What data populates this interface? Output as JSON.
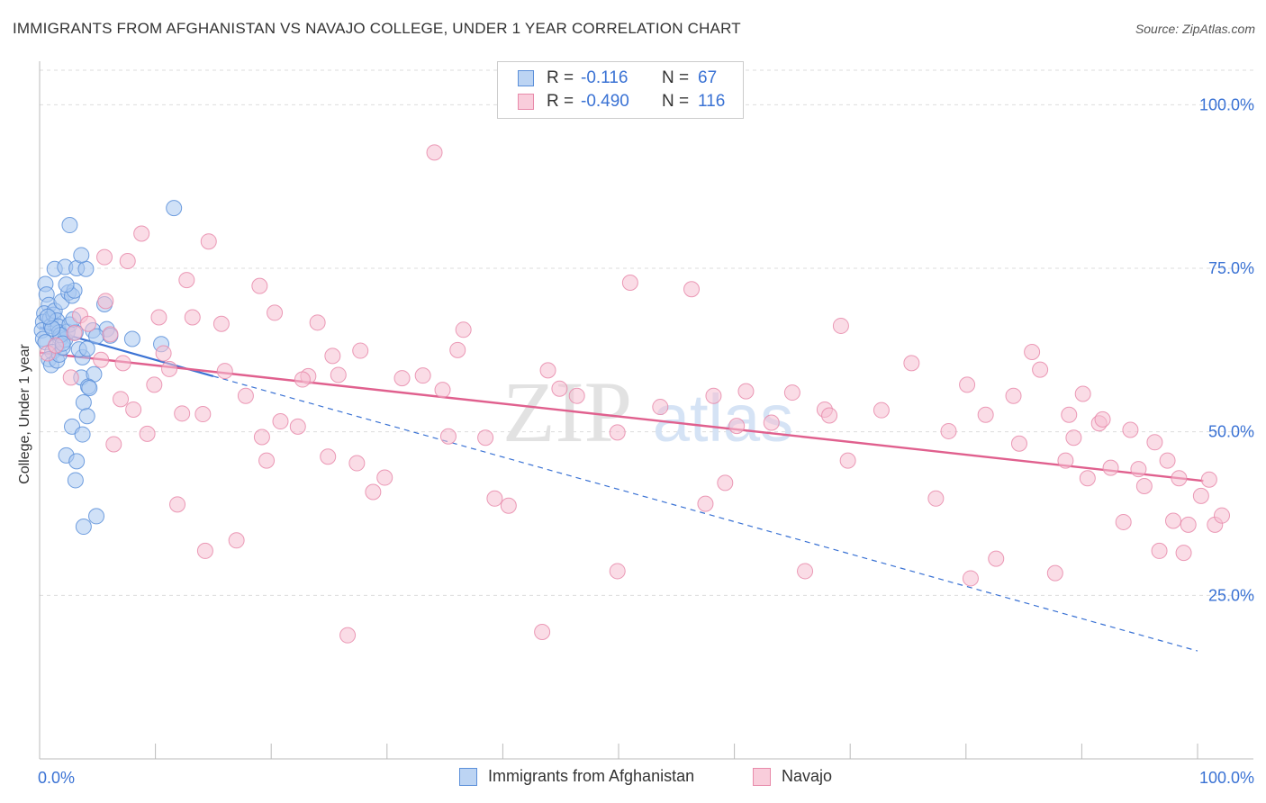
{
  "header": {
    "title": "IMMIGRANTS FROM AFGHANISTAN VS NAVAJO COLLEGE, UNDER 1 YEAR CORRELATION CHART",
    "source": "Source: ZipAtlas.com"
  },
  "watermark": {
    "zip": "ZIP",
    "atlas": "atlas"
  },
  "stats_legend": {
    "rows": [
      {
        "r_label": "R =",
        "r_value": "-0.116",
        "n_label": "N =",
        "n_value": "67"
      },
      {
        "r_label": "R =",
        "r_value": "-0.490",
        "n_label": "N =",
        "n_value": "116"
      }
    ]
  },
  "colors": {
    "blue_fill": "#a9c8f0",
    "blue_stroke": "#5b8fd9",
    "blue_line": "#3a72d4",
    "pink_fill": "#f6c0d1",
    "pink_stroke": "#e88aaa",
    "pink_line": "#e0608e",
    "tick_text": "#3a72d4",
    "grid": "#dddddd"
  },
  "chart_data": {
    "type": "scatter",
    "title": "IMMIGRANTS FROM AFGHANISTAN VS NAVAJO COLLEGE, UNDER 1 YEAR CORRELATION CHART",
    "xlabel": "",
    "ylabel": "College, Under 1 year",
    "xlim": [
      0,
      100
    ],
    "ylim": [
      0,
      105
    ],
    "x_tick_labels": [
      "0.0%",
      "100.0%"
    ],
    "y_ticks": [
      25,
      50,
      75,
      100
    ],
    "y_tick_labels": [
      "25.0%",
      "50.0%",
      "75.0%",
      "100.0%"
    ],
    "legend": [
      "Immigrants from Afghanistan",
      "Navajo"
    ],
    "series": [
      {
        "name": "Immigrants from Afghanistan",
        "color": "#a9c8f0",
        "points": [
          [
            0.5,
            72.6
          ],
          [
            0.6,
            71.0
          ],
          [
            0.8,
            69.4
          ],
          [
            0.4,
            68.1
          ],
          [
            0.3,
            66.8
          ],
          [
            0.2,
            65.5
          ],
          [
            0.3,
            64.2
          ],
          [
            0.5,
            63.7
          ],
          [
            0.9,
            67.3
          ],
          [
            1.0,
            66.2
          ],
          [
            1.2,
            67.9
          ],
          [
            1.3,
            68.5
          ],
          [
            1.5,
            67.0
          ],
          [
            1.6,
            66.1
          ],
          [
            1.7,
            65.2
          ],
          [
            1.8,
            64.3
          ],
          [
            1.4,
            63.0
          ],
          [
            1.1,
            62.2
          ],
          [
            0.8,
            61.1
          ],
          [
            1.0,
            60.2
          ],
          [
            1.5,
            60.9
          ],
          [
            1.7,
            61.8
          ],
          [
            2.0,
            62.9
          ],
          [
            2.2,
            64.1
          ],
          [
            2.4,
            65.3
          ],
          [
            2.6,
            66.4
          ],
          [
            1.9,
            69.9
          ],
          [
            2.5,
            71.3
          ],
          [
            2.8,
            70.8
          ],
          [
            3.0,
            71.6
          ],
          [
            2.3,
            72.5
          ],
          [
            1.3,
            74.9
          ],
          [
            2.2,
            75.2
          ],
          [
            3.2,
            75.0
          ],
          [
            4.0,
            74.9
          ],
          [
            3.6,
            77.0
          ],
          [
            2.6,
            81.6
          ],
          [
            11.6,
            84.2
          ],
          [
            5.6,
            69.5
          ],
          [
            3.1,
            65.2
          ],
          [
            4.6,
            65.5
          ],
          [
            5.8,
            65.7
          ],
          [
            6.1,
            64.7
          ],
          [
            4.9,
            64.6
          ],
          [
            3.7,
            61.4
          ],
          [
            3.4,
            62.6
          ],
          [
            4.1,
            62.7
          ],
          [
            8.0,
            64.2
          ],
          [
            10.5,
            63.4
          ],
          [
            3.6,
            58.3
          ],
          [
            4.7,
            58.8
          ],
          [
            4.2,
            56.9
          ],
          [
            4.3,
            56.7
          ],
          [
            3.8,
            54.5
          ],
          [
            4.1,
            52.4
          ],
          [
            2.8,
            50.8
          ],
          [
            3.7,
            49.6
          ],
          [
            2.3,
            46.4
          ],
          [
            3.2,
            45.5
          ],
          [
            3.1,
            42.6
          ],
          [
            3.8,
            35.5
          ],
          [
            4.9,
            37.1
          ],
          [
            1.8,
            64.8
          ],
          [
            2.0,
            63.5
          ],
          [
            1.1,
            65.8
          ],
          [
            0.7,
            67.6
          ],
          [
            2.9,
            67.2
          ]
        ],
        "trend": {
          "x": [
            0,
            15
          ],
          "y": [
            66.0,
            58.5
          ],
          "dashed_extension": {
            "x": [
              15,
              100
            ],
            "y": [
              58.5,
              16.5
            ]
          }
        }
      },
      {
        "name": "Navajo",
        "color": "#f6c0d1",
        "points": [
          [
            0.7,
            62.0
          ],
          [
            1.4,
            63.2
          ],
          [
            2.7,
            58.3
          ],
          [
            3.0,
            65.1
          ],
          [
            3.5,
            67.8
          ],
          [
            4.2,
            66.5
          ],
          [
            5.3,
            61.0
          ],
          [
            5.6,
            76.7
          ],
          [
            6.1,
            64.9
          ],
          [
            5.7,
            70.0
          ],
          [
            6.4,
            48.1
          ],
          [
            7.2,
            60.5
          ],
          [
            7.6,
            76.1
          ],
          [
            8.1,
            53.4
          ],
          [
            8.8,
            80.3
          ],
          [
            9.3,
            49.7
          ],
          [
            9.9,
            57.2
          ],
          [
            10.3,
            67.5
          ],
          [
            10.7,
            62.0
          ],
          [
            11.2,
            59.6
          ],
          [
            11.9,
            38.9
          ],
          [
            12.3,
            52.8
          ],
          [
            12.7,
            73.2
          ],
          [
            13.2,
            67.5
          ],
          [
            14.3,
            31.8
          ],
          [
            14.6,
            79.1
          ],
          [
            15.7,
            66.5
          ],
          [
            16.0,
            59.3
          ],
          [
            17.0,
            33.4
          ],
          [
            17.8,
            55.5
          ],
          [
            19.0,
            72.3
          ],
          [
            19.2,
            49.2
          ],
          [
            19.6,
            45.6
          ],
          [
            20.3,
            68.2
          ],
          [
            20.8,
            51.6
          ],
          [
            22.3,
            50.8
          ],
          [
            23.2,
            58.5
          ],
          [
            24.0,
            66.7
          ],
          [
            24.9,
            46.2
          ],
          [
            25.3,
            61.6
          ],
          [
            25.8,
            58.7
          ],
          [
            26.6,
            18.9
          ],
          [
            27.4,
            45.2
          ],
          [
            27.7,
            62.4
          ],
          [
            28.8,
            40.8
          ],
          [
            29.8,
            43.0
          ],
          [
            31.3,
            58.2
          ],
          [
            33.1,
            58.6
          ],
          [
            34.1,
            92.7
          ],
          [
            34.8,
            56.4
          ],
          [
            35.3,
            49.3
          ],
          [
            36.1,
            62.5
          ],
          [
            36.6,
            65.6
          ],
          [
            38.5,
            49.1
          ],
          [
            39.3,
            39.8
          ],
          [
            40.5,
            38.7
          ],
          [
            43.4,
            19.4
          ],
          [
            43.9,
            59.4
          ],
          [
            44.9,
            56.6
          ],
          [
            46.4,
            55.5
          ],
          [
            49.9,
            28.7
          ],
          [
            49.9,
            49.9
          ],
          [
            51.0,
            72.8
          ],
          [
            53.6,
            53.8
          ],
          [
            56.3,
            71.8
          ],
          [
            57.5,
            39.0
          ],
          [
            58.2,
            55.5
          ],
          [
            59.2,
            42.2
          ],
          [
            60.2,
            50.9
          ],
          [
            61.0,
            56.2
          ],
          [
            63.2,
            51.4
          ],
          [
            65.0,
            56.0
          ],
          [
            66.1,
            28.7
          ],
          [
            67.8,
            53.4
          ],
          [
            68.2,
            52.5
          ],
          [
            69.2,
            66.2
          ],
          [
            69.8,
            45.6
          ],
          [
            72.7,
            53.3
          ],
          [
            75.3,
            60.5
          ],
          [
            77.4,
            39.8
          ],
          [
            78.5,
            50.1
          ],
          [
            80.1,
            57.2
          ],
          [
            80.4,
            27.6
          ],
          [
            81.7,
            52.6
          ],
          [
            82.6,
            30.6
          ],
          [
            84.1,
            55.5
          ],
          [
            84.6,
            48.2
          ],
          [
            85.7,
            62.2
          ],
          [
            86.4,
            59.5
          ],
          [
            87.7,
            28.4
          ],
          [
            88.6,
            45.6
          ],
          [
            88.9,
            52.6
          ],
          [
            89.3,
            49.1
          ],
          [
            90.1,
            55.8
          ],
          [
            90.5,
            42.9
          ],
          [
            91.5,
            51.3
          ],
          [
            91.8,
            51.9
          ],
          [
            92.5,
            44.5
          ],
          [
            93.6,
            36.2
          ],
          [
            94.2,
            50.3
          ],
          [
            94.9,
            44.3
          ],
          [
            95.4,
            41.7
          ],
          [
            96.3,
            48.4
          ],
          [
            96.7,
            31.8
          ],
          [
            97.4,
            45.6
          ],
          [
            97.9,
            36.4
          ],
          [
            98.4,
            42.9
          ],
          [
            98.8,
            31.5
          ],
          [
            99.2,
            35.8
          ],
          [
            100.3,
            40.2
          ],
          [
            101.0,
            42.7
          ],
          [
            101.5,
            35.8
          ],
          [
            102.1,
            37.2
          ],
          [
            22.7,
            58.0
          ],
          [
            14.1,
            52.7
          ],
          [
            7.0,
            55.0
          ]
        ],
        "trend": {
          "x": [
            0,
            100.5
          ],
          "y": [
            62.1,
            42.5
          ]
        }
      }
    ]
  }
}
